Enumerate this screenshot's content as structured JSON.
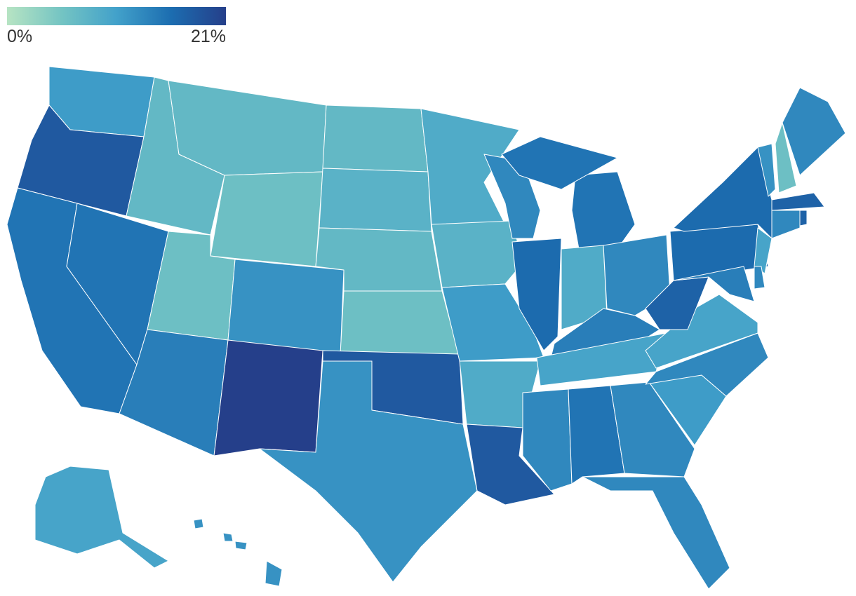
{
  "legend": {
    "min": {
      "value": 0,
      "label": "0%"
    },
    "max": {
      "value": 21,
      "label": "21%"
    },
    "colors": [
      "#b7e4c3",
      "#74c4c3",
      "#42a1ca",
      "#1c6db0",
      "#253f8a"
    ]
  },
  "values": [
    11,
    18,
    15,
    15,
    7,
    7,
    6,
    6,
    14,
    12,
    21,
    7,
    8,
    7,
    6,
    18,
    12,
    9,
    8,
    11,
    9,
    18,
    13,
    16,
    15,
    15,
    9,
    13,
    14,
    10,
    13,
    15,
    13,
    13,
    11,
    13,
    10,
    17,
    16,
    16,
    12,
    6,
    13,
    17,
    13,
    17,
    10,
    14,
    13,
    10,
    12,
    12,
    12,
    12
  ]
}
